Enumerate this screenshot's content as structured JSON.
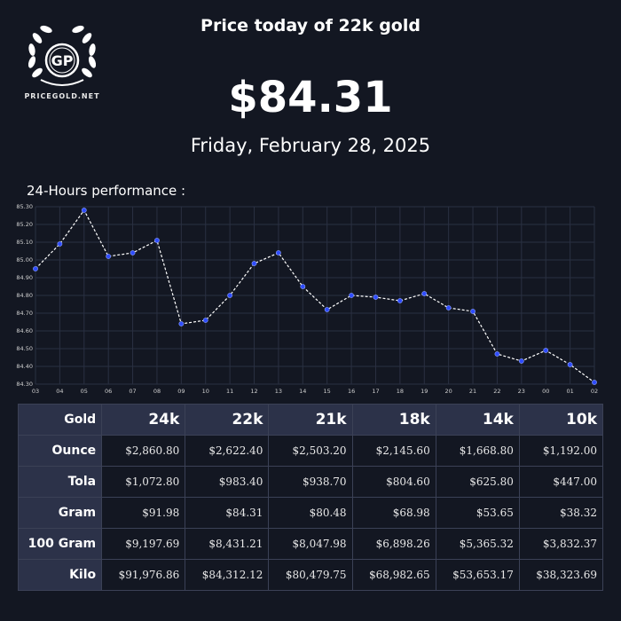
{
  "logo": {
    "monogram": "GP",
    "site": "PRICEGOLD.NET",
    "icon": "laurel-wreath-icon"
  },
  "header": {
    "title": "Price today of 22k gold",
    "price": "$84.31",
    "date": "Friday, February 28, 2025"
  },
  "performance_label": "24-Hours performance :",
  "colors": {
    "background": "#131722",
    "line": "#ffffff",
    "point": "#2f4cff",
    "grid": "#2a3042",
    "table_header": "#2c3249"
  },
  "chart_data": {
    "type": "line",
    "x": [
      "03",
      "04",
      "05",
      "06",
      "07",
      "08",
      "09",
      "10",
      "11",
      "12",
      "13",
      "14",
      "15",
      "16",
      "17",
      "18",
      "19",
      "20",
      "21",
      "22",
      "23",
      "00",
      "01",
      "02"
    ],
    "series": [
      {
        "values": [
          84.95,
          85.09,
          85.28,
          85.02,
          85.04,
          85.11,
          84.64,
          84.66,
          84.8,
          84.98,
          85.04,
          84.85,
          84.72,
          84.8,
          84.79,
          84.77,
          84.81,
          84.73,
          84.71,
          84.47,
          84.43,
          84.49,
          84.41,
          84.31
        ]
      }
    ],
    "ylim": [
      84.3,
      85.3
    ],
    "yticks": [
      "85.30",
      "85.20",
      "85.10",
      "85.00",
      "84.90",
      "84.80",
      "84.70",
      "84.60",
      "84.50",
      "84.40",
      "84.30"
    ],
    "grid": true
  },
  "table": {
    "corner": "Gold",
    "columns": [
      "24k",
      "22k",
      "21k",
      "18k",
      "14k",
      "10k"
    ],
    "rows": [
      {
        "label": "Ounce",
        "values": [
          "$2,860.80",
          "$2,622.40",
          "$2,503.20",
          "$2,145.60",
          "$1,668.80",
          "$1,192.00"
        ]
      },
      {
        "label": "Tola",
        "values": [
          "$1,072.80",
          "$983.40",
          "$938.70",
          "$804.60",
          "$625.80",
          "$447.00"
        ]
      },
      {
        "label": "Gram",
        "values": [
          "$91.98",
          "$84.31",
          "$80.48",
          "$68.98",
          "$53.65",
          "$38.32"
        ]
      },
      {
        "label": "100 Gram",
        "values": [
          "$9,197.69",
          "$8,431.21",
          "$8,047.98",
          "$6,898.26",
          "$5,365.32",
          "$3,832.37"
        ]
      },
      {
        "label": "Kilo",
        "values": [
          "$91,976.86",
          "$84,312.12",
          "$80,479.75",
          "$68,982.65",
          "$53,653.17",
          "$38,323.69"
        ]
      }
    ]
  }
}
